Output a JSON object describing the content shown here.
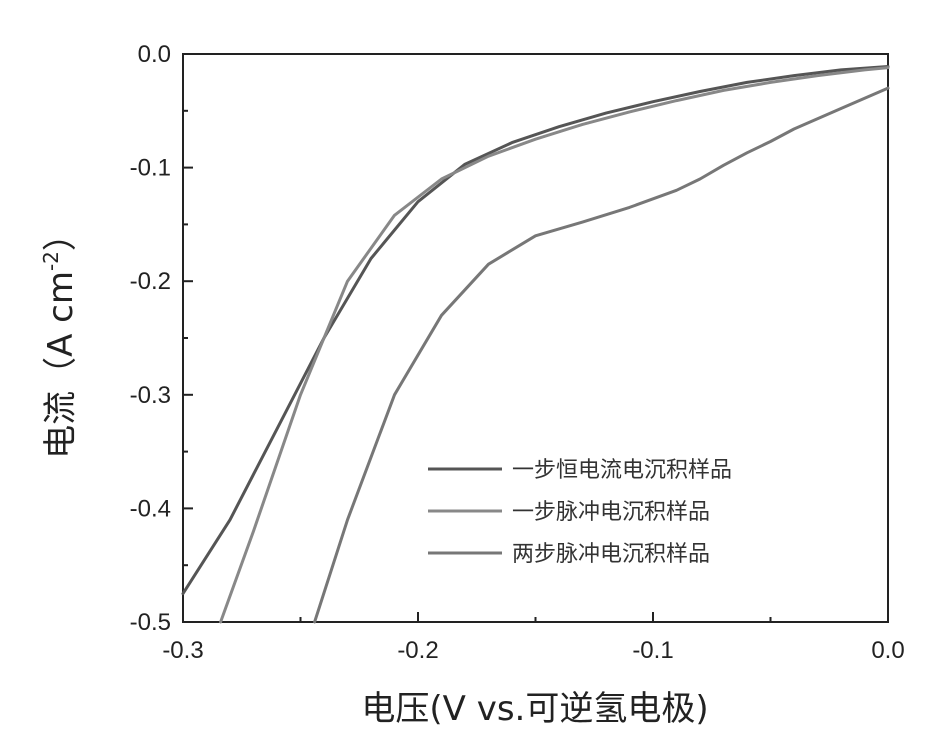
{
  "chart_data": {
    "type": "line",
    "title": "",
    "xlabel": "电压(V vs.可逆氢电极)",
    "ylabel_main": "电流（A cm",
    "ylabel_sup": "-2",
    "ylabel_close": "）",
    "xlim": [
      -0.3,
      0.0
    ],
    "ylim": [
      -0.5,
      0.0
    ],
    "xticks": [
      -0.3,
      -0.2,
      -0.1,
      0.0
    ],
    "yticks": [
      0.0,
      -0.1,
      -0.2,
      -0.3,
      -0.4,
      -0.5
    ],
    "xtick_labels": [
      "-0.3",
      "-0.2",
      "-0.1",
      "0.0"
    ],
    "ytick_labels": [
      "0.0",
      "-0.1",
      "-0.2",
      "-0.3",
      "-0.4",
      "-0.5"
    ],
    "grid": false,
    "legend_position": "bottom-right",
    "series": [
      {
        "name": "一步恒电流电沉积样品",
        "color": "#555555",
        "x": [
          -0.3,
          -0.28,
          -0.26,
          -0.24,
          -0.22,
          -0.2,
          -0.18,
          -0.16,
          -0.14,
          -0.12,
          -0.1,
          -0.08,
          -0.06,
          -0.04,
          -0.02,
          0.0
        ],
        "y": [
          -0.475,
          -0.41,
          -0.33,
          -0.25,
          -0.18,
          -0.13,
          -0.097,
          -0.078,
          -0.064,
          -0.052,
          -0.042,
          -0.033,
          -0.025,
          -0.019,
          -0.014,
          -0.011
        ]
      },
      {
        "name": "一步脉冲电沉积样品",
        "color": "#888888",
        "x": [
          -0.284,
          -0.27,
          -0.25,
          -0.23,
          -0.21,
          -0.19,
          -0.17,
          -0.15,
          -0.13,
          -0.11,
          -0.09,
          -0.07,
          -0.05,
          -0.03,
          -0.01,
          0.0
        ],
        "y": [
          -0.5,
          -0.42,
          -0.3,
          -0.2,
          -0.142,
          -0.11,
          -0.09,
          -0.075,
          -0.062,
          -0.051,
          -0.041,
          -0.032,
          -0.025,
          -0.019,
          -0.014,
          -0.012
        ]
      },
      {
        "name": "两步脉冲电沉积样品",
        "color": "#777777",
        "x": [
          -0.244,
          -0.23,
          -0.21,
          -0.19,
          -0.17,
          -0.15,
          -0.13,
          -0.11,
          -0.09,
          -0.08,
          -0.07,
          -0.06,
          -0.05,
          -0.04,
          -0.02,
          0.0
        ],
        "y": [
          -0.5,
          -0.41,
          -0.3,
          -0.23,
          -0.185,
          -0.16,
          -0.148,
          -0.135,
          -0.12,
          -0.11,
          -0.098,
          -0.087,
          -0.077,
          -0.066,
          -0.048,
          -0.03
        ]
      }
    ]
  }
}
